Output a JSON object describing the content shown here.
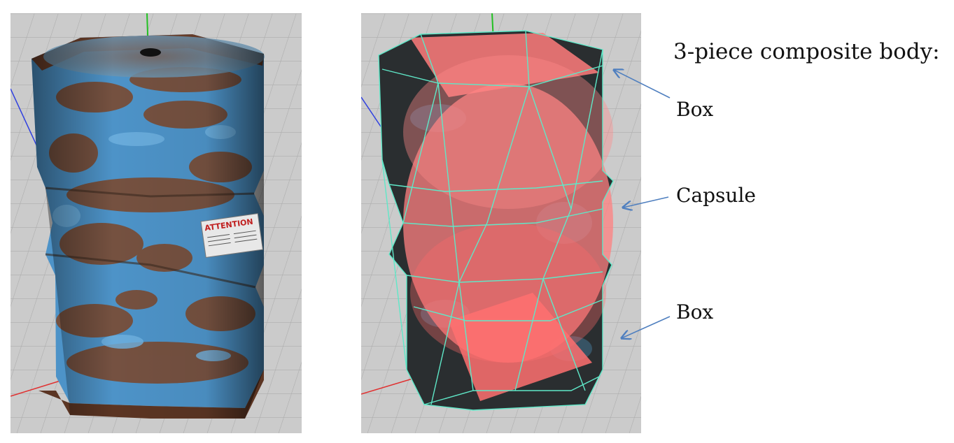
{
  "annotation": {
    "title": "3-piece composite body:",
    "labels": [
      "Box",
      "Capsule",
      "Box"
    ]
  },
  "viewports": {
    "left": {
      "content": "textured-barrel",
      "label_text": "ATTENTION"
    },
    "right": {
      "content": "barrel-with-collision-shapes"
    }
  },
  "colors": {
    "grid_bg": "#c9c9c9",
    "grid_line": "#a9a9a9",
    "barrel_blue": "#4d93c8",
    "rust": "#7a4a32",
    "collision_fill": "#ff7b7b",
    "wireframe": "#5fe8c8",
    "arrow": "#4f7fbf",
    "axis_x": "#e03030",
    "axis_y": "#22c022",
    "axis_z": "#3040e0"
  },
  "icons": [
    "arrow-icon"
  ]
}
